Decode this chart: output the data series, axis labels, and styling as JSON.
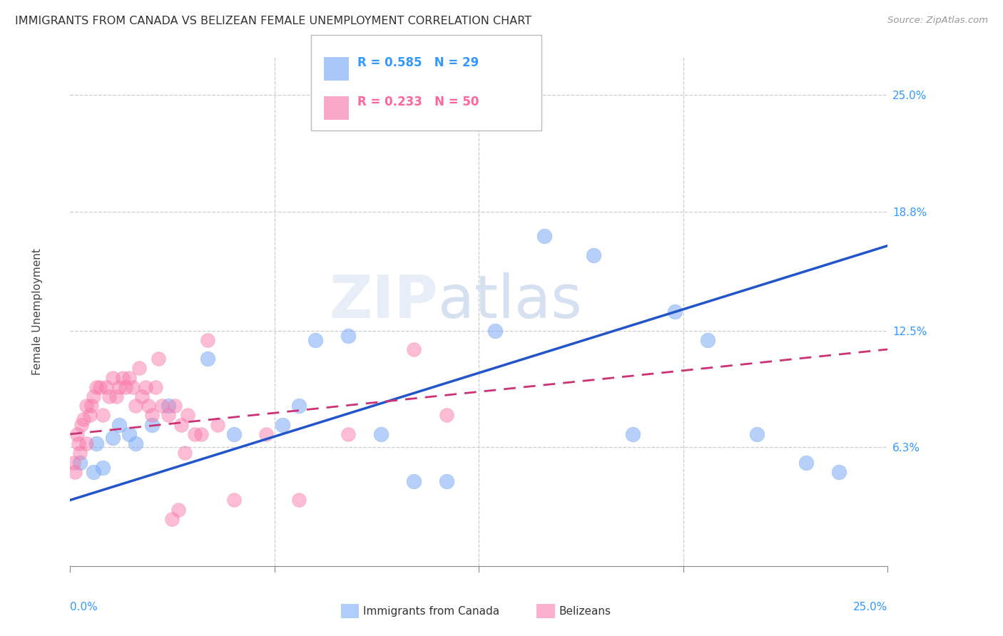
{
  "title": "IMMIGRANTS FROM CANADA VS BELIZEAN FEMALE UNEMPLOYMENT CORRELATION CHART",
  "source": "Source: ZipAtlas.com",
  "ylabel": "Female Unemployment",
  "right_ytick_vals": [
    6.3,
    12.5,
    18.8,
    25.0
  ],
  "right_ytick_labels": [
    "6.3%",
    "12.5%",
    "18.8%",
    "25.0%"
  ],
  "x_range": [
    0.0,
    25.0
  ],
  "y_range": [
    0.0,
    27.0
  ],
  "legend_r1": "R = 0.585",
  "legend_n1": "N = 29",
  "legend_r2": "R = 0.233",
  "legend_n2": "N = 50",
  "color_blue": "#7aabf7",
  "color_pink": "#f87aab",
  "blue_trend_start": 3.5,
  "blue_trend_end": 17.0,
  "pink_trend_start": 7.0,
  "pink_trend_end": 11.5,
  "blue_scatter_x": [
    0.3,
    0.7,
    0.8,
    1.0,
    1.3,
    1.5,
    1.8,
    2.0,
    2.5,
    3.0,
    4.2,
    5.0,
    6.5,
    7.0,
    7.5,
    8.5,
    9.5,
    10.5,
    11.5,
    13.0,
    14.5,
    16.0,
    17.2,
    18.5,
    19.5,
    21.0,
    22.5,
    23.5,
    14.0
  ],
  "blue_scatter_y": [
    5.5,
    5.0,
    6.5,
    5.2,
    6.8,
    7.5,
    7.0,
    6.5,
    7.5,
    8.5,
    11.0,
    7.0,
    7.5,
    8.5,
    12.0,
    12.2,
    7.0,
    4.5,
    4.5,
    12.5,
    17.5,
    16.5,
    7.0,
    13.5,
    12.0,
    7.0,
    5.5,
    5.0,
    23.5
  ],
  "pink_scatter_x": [
    0.1,
    0.15,
    0.2,
    0.25,
    0.3,
    0.35,
    0.4,
    0.5,
    0.5,
    0.6,
    0.65,
    0.7,
    0.8,
    0.9,
    1.0,
    1.1,
    1.2,
    1.3,
    1.4,
    1.5,
    1.6,
    1.7,
    1.8,
    1.9,
    2.0,
    2.1,
    2.2,
    2.3,
    2.4,
    2.5,
    2.6,
    2.7,
    2.8,
    3.0,
    3.2,
    3.4,
    3.6,
    3.8,
    4.0,
    4.2,
    4.5,
    5.0,
    6.0,
    7.0,
    8.5,
    10.5,
    11.5,
    3.5,
    3.3,
    3.1
  ],
  "pink_scatter_y": [
    5.5,
    5.0,
    7.0,
    6.5,
    6.0,
    7.5,
    7.8,
    6.5,
    8.5,
    8.0,
    8.5,
    9.0,
    9.5,
    9.5,
    8.0,
    9.5,
    9.0,
    10.0,
    9.0,
    9.5,
    10.0,
    9.5,
    10.0,
    9.5,
    8.5,
    10.5,
    9.0,
    9.5,
    8.5,
    8.0,
    9.5,
    11.0,
    8.5,
    8.0,
    8.5,
    7.5,
    8.0,
    7.0,
    7.0,
    12.0,
    7.5,
    3.5,
    7.0,
    3.5,
    7.0,
    11.5,
    8.0,
    6.0,
    3.0,
    2.5
  ]
}
